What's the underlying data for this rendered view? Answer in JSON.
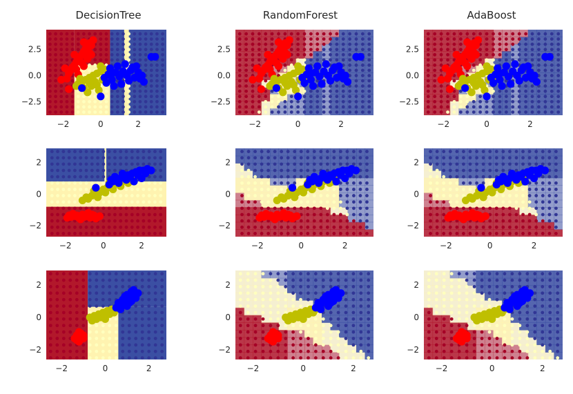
{
  "chart_data": {
    "type": "scatter",
    "layout": "3x3 grid of decision-boundary plots",
    "column_titles": [
      "DecisionTree",
      "RandomForest",
      "AdaBoost"
    ],
    "colors": {
      "class_0": "#ff0000",
      "class_1": "#bfbf00",
      "class_2": "#0000ff",
      "region_0": "#b2182b",
      "region_1": "#fff3b0",
      "region_2": "#3b4fa3",
      "grid_point_0": "#a50026",
      "grid_point_1": "#ffffbf",
      "grid_point_2": "#313695",
      "axes_background": "#eaeaf2"
    },
    "rows": [
      {
        "xlim": [
          -2.9,
          3.5
        ],
        "ylim": [
          -3.8,
          4.4
        ],
        "xticks": [
          -2,
          0,
          2
        ],
        "yticks": [
          2.5,
          0.0,
          -2.5
        ],
        "xtick_labels": [
          "−2",
          "0",
          "2"
        ],
        "ytick_labels": [
          "2.5",
          "0.0",
          "−2.5"
        ],
        "grid_x": [
          -2.7,
          -2.4,
          -2.1,
          -1.8,
          -1.5,
          -1.2,
          -0.9,
          -0.6,
          -0.3,
          0.0,
          0.3,
          0.6,
          0.9,
          1.2,
          1.5,
          1.8,
          2.1,
          2.4,
          2.7,
          3.0,
          3.3
        ],
        "grid_y": [
          -3.5,
          -3.0,
          -2.5,
          -2.0,
          -1.5,
          -1.0,
          -0.5,
          0.0,
          0.5,
          1.0,
          1.5,
          2.0,
          2.5,
          3.0,
          3.5,
          4.0
        ],
        "tree_boxes": [
          {
            "x0": -2.9,
            "x1": -1.4,
            "y0": -3.8,
            "y1": 4.4,
            "c": 0
          },
          {
            "x0": -1.4,
            "x1": 0.5,
            "y0": 1.0,
            "y1": 4.4,
            "c": 0
          },
          {
            "x0": 0.5,
            "x1": 3.5,
            "y0": -3.8,
            "y1": 4.4,
            "c": 2
          },
          {
            "x0": -1.4,
            "x1": 0.5,
            "y0": -3.8,
            "y1": 1.0,
            "c": 1
          },
          {
            "x0": 1.25,
            "x1": 1.5,
            "y0": -3.8,
            "y1": 4.4,
            "c": 1
          }
        ],
        "points": {
          "class_0": [
            [
              -1.8,
              -0.3
            ],
            [
              -1.7,
              0.2
            ],
            [
              -1.6,
              0.5
            ],
            [
              -1.5,
              0.8
            ],
            [
              -1.4,
              1.0
            ],
            [
              -1.3,
              1.3
            ],
            [
              -1.2,
              1.5
            ],
            [
              -1.1,
              1.8
            ],
            [
              -1.0,
              2.0
            ],
            [
              -0.9,
              2.3
            ],
            [
              -0.8,
              2.6
            ],
            [
              -0.7,
              2.8
            ],
            [
              -0.6,
              3.1
            ],
            [
              -0.5,
              2.9
            ],
            [
              -0.4,
              3.4
            ],
            [
              -1.3,
              0.6
            ],
            [
              -1.0,
              1.2
            ],
            [
              -0.8,
              1.9
            ],
            [
              -0.6,
              2.2
            ],
            [
              -2.1,
              -0.4
            ],
            [
              -1.7,
              -1.3
            ],
            [
              -1.2,
              0.1
            ],
            [
              -0.9,
              0.9
            ],
            [
              -0.7,
              1.6
            ],
            [
              -0.5,
              2.0
            ],
            [
              -1.4,
              2.0
            ],
            [
              -0.9,
              3.2
            ],
            [
              -1.9,
              0.7
            ]
          ],
          "class_1": [
            [
              -1.2,
              -0.8
            ],
            [
              -1.0,
              -0.6
            ],
            [
              -0.8,
              -0.4
            ],
            [
              -0.6,
              -0.2
            ],
            [
              -0.4,
              0.0
            ],
            [
              -0.2,
              0.2
            ],
            [
              0.0,
              0.4
            ],
            [
              0.2,
              0.6
            ],
            [
              -0.9,
              -1.2
            ],
            [
              -0.5,
              -1.0
            ],
            [
              -0.3,
              -0.6
            ],
            [
              0.1,
              -0.4
            ],
            [
              0.3,
              -0.2
            ],
            [
              -0.7,
              -1.6
            ],
            [
              -0.1,
              -1.4
            ],
            [
              0.4,
              0.0
            ],
            [
              -1.1,
              -0.3
            ],
            [
              -0.2,
              -0.9
            ],
            [
              0.0,
              0.9
            ],
            [
              0.5,
              0.3
            ],
            [
              -0.6,
              -0.7
            ],
            [
              -1.3,
              -1.0
            ]
          ],
          "class_2": [
            [
              0.2,
              -0.2
            ],
            [
              0.4,
              0.1
            ],
            [
              0.6,
              -0.4
            ],
            [
              0.8,
              0.3
            ],
            [
              1.0,
              -0.1
            ],
            [
              1.2,
              0.4
            ],
            [
              1.4,
              0.0
            ],
            [
              1.6,
              0.5
            ],
            [
              1.8,
              -0.2
            ],
            [
              2.0,
              0.3
            ],
            [
              0.5,
              0.7
            ],
            [
              0.9,
              0.9
            ],
            [
              1.3,
              1.1
            ],
            [
              1.7,
              0.8
            ],
            [
              2.1,
              -0.3
            ],
            [
              2.3,
              -0.6
            ],
            [
              0.3,
              -0.7
            ],
            [
              0.7,
              -1.0
            ],
            [
              1.1,
              -0.8
            ],
            [
              -1.0,
              -1.2
            ],
            [
              0.0,
              -2.0
            ],
            [
              0.6,
              0.2
            ],
            [
              1.5,
              -0.5
            ],
            [
              2.7,
              1.8
            ],
            [
              2.9,
              1.8
            ],
            [
              1.9,
              0.9
            ],
            [
              2.2,
              0.0
            ]
          ]
        }
      },
      {
        "xlim": [
          -3.0,
          3.3
        ],
        "ylim": [
          -2.7,
          2.9
        ],
        "xticks": [
          -2,
          0,
          2
        ],
        "yticks": [
          2,
          0,
          -2
        ],
        "xtick_labels": [
          "−2",
          "0",
          "2"
        ],
        "ytick_labels": [
          "2",
          "0",
          "−2"
        ],
        "grid_x": [
          -2.7,
          -2.4,
          -2.1,
          -1.8,
          -1.5,
          -1.2,
          -0.9,
          -0.6,
          -0.3,
          0.0,
          0.3,
          0.6,
          0.9,
          1.2,
          1.5,
          1.8,
          2.1,
          2.4,
          2.7,
          3.0
        ],
        "grid_y": [
          -2.5,
          -2.1,
          -1.7,
          -1.3,
          -0.9,
          -0.5,
          -0.1,
          0.3,
          0.7,
          1.1,
          1.5,
          1.9,
          2.3,
          2.7
        ],
        "tree_boxes": [
          {
            "x0": -3.0,
            "x1": 3.3,
            "y0": -2.7,
            "y1": -0.8,
            "c": 0
          },
          {
            "x0": -3.0,
            "x1": 3.3,
            "y0": -0.8,
            "y1": 0.8,
            "c": 1
          },
          {
            "x0": -3.0,
            "x1": 3.3,
            "y0": 0.8,
            "y1": 2.9,
            "c": 2
          },
          {
            "x0": 0.05,
            "x1": 0.15,
            "y0": 0.8,
            "y1": 2.9,
            "c": 1
          }
        ],
        "points": {
          "class_0": [
            [
              -1.9,
              -1.5
            ],
            [
              -1.7,
              -1.45
            ],
            [
              -1.5,
              -1.4
            ],
            [
              -1.3,
              -1.5
            ],
            [
              -1.1,
              -1.3
            ],
            [
              -0.9,
              -1.4
            ],
            [
              -0.7,
              -1.5
            ],
            [
              -0.5,
              -1.35
            ],
            [
              -0.3,
              -1.45
            ],
            [
              -1.6,
              -1.25
            ],
            [
              -1.2,
              -1.6
            ],
            [
              -0.8,
              -1.2
            ],
            [
              -0.4,
              -1.55
            ],
            [
              -1.4,
              -1.35
            ],
            [
              -1.0,
              -1.45
            ],
            [
              -0.6,
              -1.3
            ],
            [
              -1.8,
              -1.35
            ],
            [
              -0.2,
              -1.4
            ]
          ],
          "class_1": [
            [
              -1.1,
              -0.4
            ],
            [
              -0.8,
              -0.3
            ],
            [
              -0.6,
              -0.1
            ],
            [
              -0.4,
              0.0
            ],
            [
              -0.2,
              0.1
            ],
            [
              0.0,
              0.3
            ],
            [
              0.2,
              0.4
            ],
            [
              0.4,
              0.5
            ],
            [
              0.6,
              0.6
            ],
            [
              0.8,
              0.7
            ],
            [
              1.0,
              0.8
            ],
            [
              1.2,
              0.9
            ],
            [
              1.4,
              1.0
            ],
            [
              -0.9,
              -0.2
            ],
            [
              -0.5,
              0.2
            ],
            [
              0.1,
              0.1
            ],
            [
              0.5,
              0.3
            ],
            [
              0.9,
              0.5
            ],
            [
              1.3,
              0.7
            ],
            [
              -0.3,
              -0.2
            ],
            [
              0.3,
              0.7
            ],
            [
              1.6,
              1.1
            ]
          ],
          "class_2": [
            [
              -0.4,
              0.4
            ],
            [
              0.3,
              0.6
            ],
            [
              0.5,
              0.8
            ],
            [
              0.7,
              0.9
            ],
            [
              0.9,
              1.0
            ],
            [
              1.1,
              1.1
            ],
            [
              1.3,
              1.2
            ],
            [
              1.5,
              1.3
            ],
            [
              1.7,
              1.4
            ],
            [
              1.9,
              1.5
            ],
            [
              2.1,
              1.5
            ],
            [
              2.3,
              1.6
            ],
            [
              2.5,
              1.5
            ],
            [
              0.6,
              1.1
            ],
            [
              1.0,
              1.3
            ],
            [
              1.4,
              1.1
            ],
            [
              1.8,
              1.2
            ],
            [
              2.2,
              1.3
            ],
            [
              0.4,
              0.9
            ],
            [
              1.2,
              0.9
            ],
            [
              1.6,
              0.8
            ],
            [
              2.0,
              1.0
            ],
            [
              0.8,
              0.7
            ]
          ]
        }
      },
      {
        "xlim": [
          -2.7,
          2.8
        ],
        "ylim": [
          -2.6,
          2.9
        ],
        "xticks": [
          -2,
          0,
          2
        ],
        "yticks": [
          2,
          0,
          -2
        ],
        "xtick_labels": [
          "−2",
          "0",
          "2"
        ],
        "ytick_labels": [
          "2",
          "0",
          "−2"
        ],
        "grid_x": [
          -2.5,
          -2.2,
          -1.9,
          -1.6,
          -1.3,
          -1.0,
          -0.7,
          -0.4,
          -0.1,
          0.2,
          0.5,
          0.8,
          1.1,
          1.4,
          1.7,
          2.0,
          2.3,
          2.6
        ],
        "grid_y": [
          -2.5,
          -2.1,
          -1.7,
          -1.3,
          -0.9,
          -0.5,
          -0.1,
          0.3,
          0.7,
          1.1,
          1.5,
          1.9,
          2.3,
          2.7
        ],
        "tree_boxes": [
          {
            "x0": -2.7,
            "x1": -0.8,
            "y0": -2.6,
            "y1": 2.9,
            "c": 0
          },
          {
            "x0": -0.8,
            "x1": 2.8,
            "y0": 0.65,
            "y1": 2.9,
            "c": 2
          },
          {
            "x0": -0.8,
            "x1": 0.6,
            "y0": -2.6,
            "y1": 0.65,
            "c": 1
          },
          {
            "x0": 0.6,
            "x1": 2.8,
            "y0": -2.6,
            "y1": 0.65,
            "c": 2
          }
        ],
        "points": {
          "class_0": [
            [
              -1.3,
              -1.4
            ],
            [
              -1.2,
              -1.2
            ],
            [
              -1.1,
              -1.3
            ],
            [
              -1.0,
              -1.1
            ],
            [
              -1.2,
              -0.9
            ],
            [
              -1.3,
              -1.1
            ],
            [
              -1.1,
              -1.0
            ],
            [
              -1.0,
              -1.3
            ],
            [
              -1.4,
              -1.3
            ],
            [
              -1.2,
              -1.5
            ],
            [
              -1.15,
              -1.15
            ]
          ],
          "class_1": [
            [
              -0.6,
              -0.2
            ],
            [
              -0.4,
              -0.1
            ],
            [
              -0.2,
              0.0
            ],
            [
              0.0,
              0.1
            ],
            [
              0.2,
              0.2
            ],
            [
              0.4,
              0.3
            ],
            [
              -0.5,
              0.1
            ],
            [
              -0.3,
              0.2
            ],
            [
              -0.1,
              0.3
            ],
            [
              0.1,
              0.4
            ],
            [
              0.3,
              0.5
            ],
            [
              0.5,
              0.5
            ],
            [
              -0.7,
              0.0
            ],
            [
              0.0,
              -0.1
            ],
            [
              0.6,
              0.7
            ]
          ],
          "class_2": [
            [
              0.5,
              0.6
            ],
            [
              0.7,
              0.8
            ],
            [
              0.9,
              1.0
            ],
            [
              1.1,
              1.2
            ],
            [
              1.3,
              1.4
            ],
            [
              1.2,
              1.6
            ],
            [
              1.0,
              1.4
            ],
            [
              0.8,
              1.1
            ],
            [
              1.4,
              1.2
            ],
            [
              1.5,
              1.5
            ],
            [
              0.6,
              0.9
            ],
            [
              1.0,
              0.7
            ],
            [
              1.2,
              1.0
            ],
            [
              0.9,
              1.3
            ],
            [
              1.3,
              1.7
            ],
            [
              0.7,
              0.5
            ],
            [
              1.1,
              0.9
            ]
          ]
        }
      }
    ]
  }
}
